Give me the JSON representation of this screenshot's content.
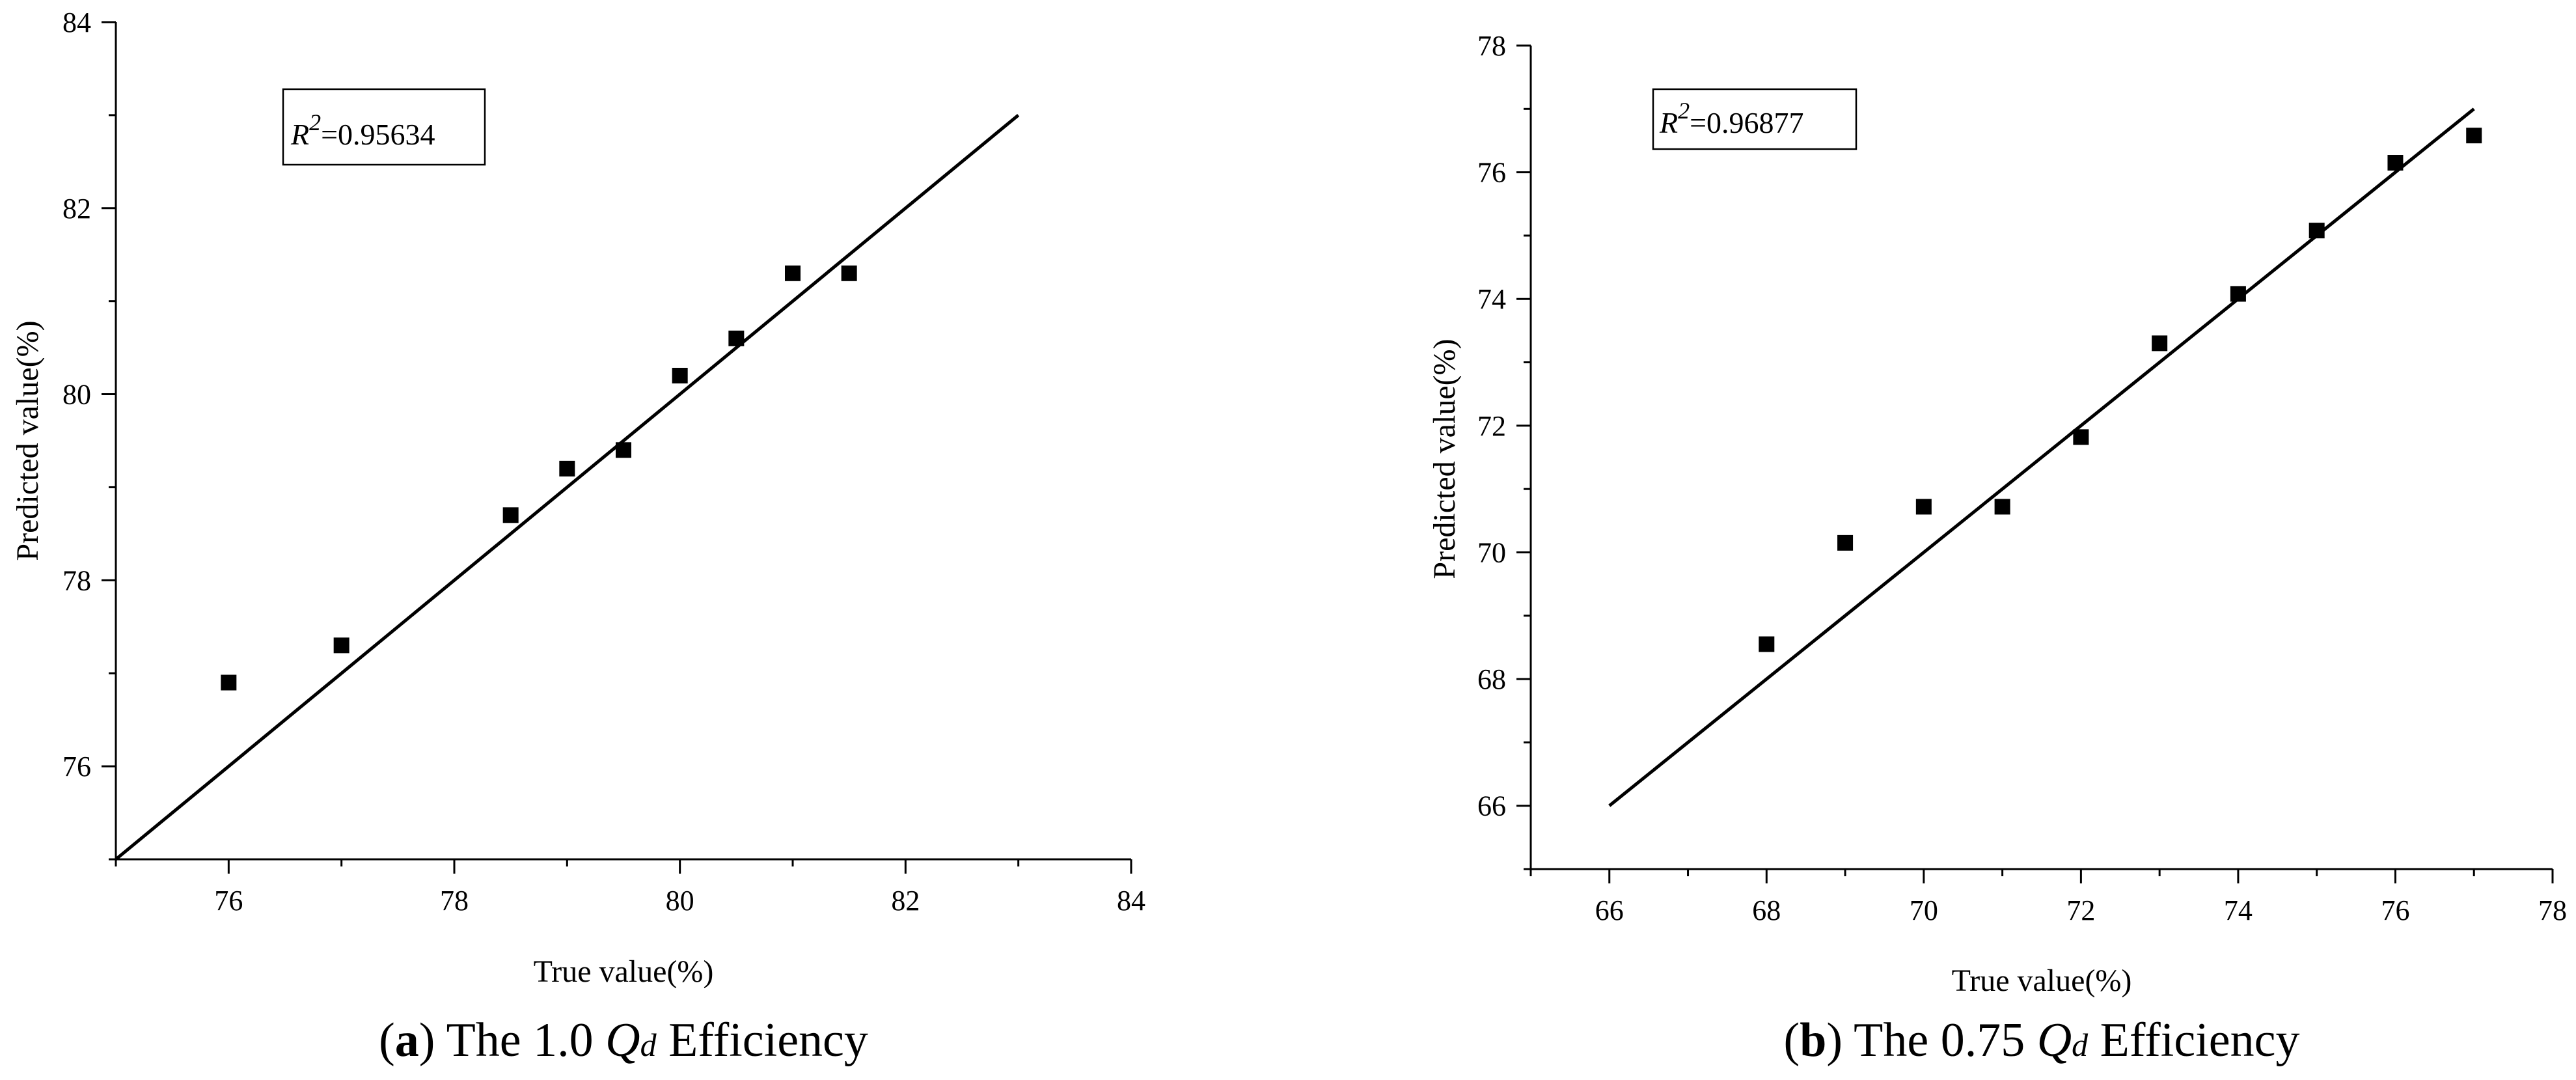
{
  "chart_data": [
    {
      "type": "scatter",
      "xlabel": "True value(%)",
      "ylabel": "Predicted value(%)",
      "xlim": [
        75,
        84
      ],
      "ylim": [
        75,
        84
      ],
      "xticks": [
        76,
        78,
        80,
        82,
        84
      ],
      "yticks": [
        76,
        78,
        80,
        82,
        84
      ],
      "x": [
        76,
        77,
        78.5,
        79,
        79.5,
        80,
        80.5,
        81,
        81.5
      ],
      "y": [
        76.9,
        77.3,
        78.7,
        79.2,
        79.4,
        80.2,
        80.6,
        81.3,
        81.3
      ],
      "fit_line": {
        "x": [
          75,
          83
        ],
        "y": [
          75,
          83
        ]
      },
      "r2": {
        "var": "R",
        "sup": "2",
        "value": "=0.95634"
      },
      "caption": {
        "letter": "a",
        "prefix": "The 1.0 ",
        "q": "Q",
        "sub": "d",
        "suffix": " Efficiency"
      }
    },
    {
      "type": "scatter",
      "xlabel": "True value(%)",
      "ylabel": "Predicted value(%)",
      "xlim": [
        65,
        78
      ],
      "ylim": [
        65,
        78
      ],
      "xticks": [
        66,
        68,
        70,
        72,
        74,
        76,
        78
      ],
      "yticks": [
        66,
        68,
        70,
        72,
        74,
        76,
        78
      ],
      "x": [
        68,
        69,
        70,
        71,
        72,
        73,
        74,
        75,
        76,
        77
      ],
      "y": [
        68.55,
        70.15,
        70.72,
        70.72,
        71.82,
        73.3,
        74.08,
        75.08,
        76.15,
        76.58
      ],
      "fit_line": {
        "x": [
          66,
          77
        ],
        "y": [
          66,
          77
        ]
      },
      "r2": {
        "var": "R",
        "sup": "2",
        "value": "=0.96877"
      },
      "caption": {
        "letter": "b",
        "prefix": "The 0.75 ",
        "q": "Q",
        "sub": "d",
        "suffix": " Efficiency"
      }
    }
  ]
}
